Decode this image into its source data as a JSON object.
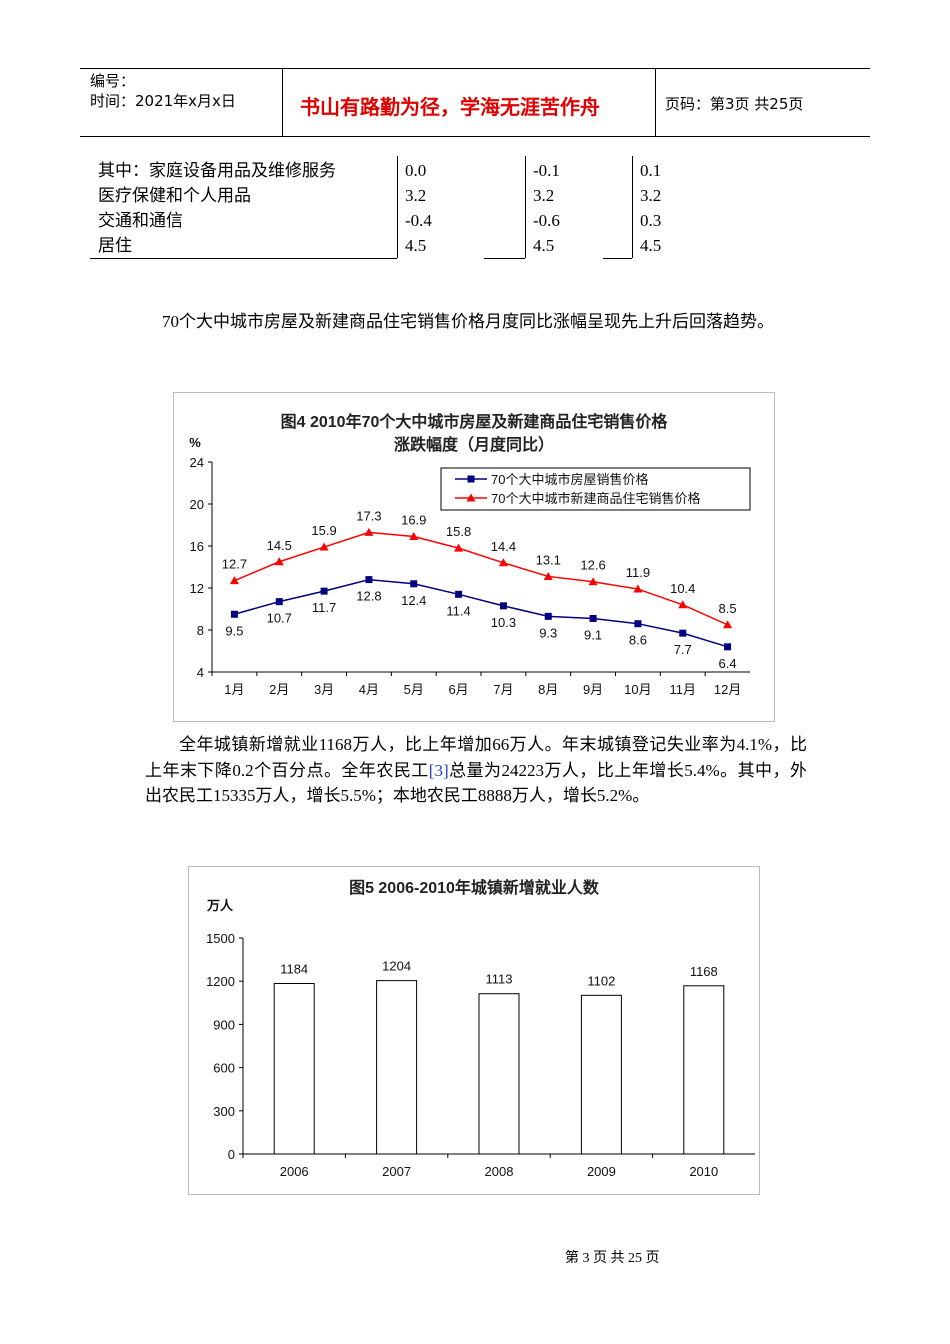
{
  "header": {
    "number": "编号：",
    "time": "时间：2021年x月x日",
    "motto": "书山有路勤为径，学海无涯苦作舟",
    "page": "页码：第3页  共25页"
  },
  "table": {
    "rows": [
      [
        "其中：家庭设备用品及维修服务",
        "0.0",
        "-0.1",
        "0.1"
      ],
      [
        "医疗保健和个人用品",
        "3.2",
        "3.2",
        "3.2"
      ],
      [
        "交通和通信",
        "-0.4",
        "-0.6",
        "0.3"
      ],
      [
        "居住",
        "4.5",
        "4.5",
        "4.5"
      ]
    ]
  },
  "paragraphs": [
    "70个大中城市房屋及新建商品住宅销售价格月度同比涨幅呈现先上升后回落趋势。",
    {
      "before": "全年城镇新增就业1168万人，比上年增加66万人。年末城镇登记失业率为4.1%，比上年末下降0.2个百分点。全年农民工",
      "note": "[3]",
      "after": "总量为24223万人，比上年增长5.4%。其中，外出农民工15335万人，增长5.5%；本地农民工8888万人，增长5.2%。"
    }
  ],
  "chart_data": [
    {
      "type": "line",
      "title": "图4   2010年70个大中城市房屋及新建商品住宅销售价格",
      "subtitle": "涨跌幅度（月度同比）",
      "y_label": "%",
      "categories": [
        "1月",
        "2月",
        "3月",
        "4月",
        "5月",
        "6月",
        "7月",
        "8月",
        "9月",
        "10月",
        "11月",
        "12月"
      ],
      "series": [
        {
          "name": "70个大中城市房屋销售价格",
          "color": "#000080",
          "marker": "square",
          "values": [
            9.5,
            10.7,
            11.7,
            12.8,
            12.4,
            11.4,
            10.3,
            9.3,
            9.1,
            8.6,
            7.7,
            6.4
          ]
        },
        {
          "name": "70个大中城市新建商品住宅销售价格",
          "color": "#ff0000",
          "marker": "triangle",
          "values": [
            12.7,
            14.5,
            15.9,
            17.3,
            16.9,
            15.8,
            14.4,
            13.1,
            12.6,
            11.9,
            10.4,
            8.5
          ]
        }
      ],
      "ylim": [
        4,
        24
      ],
      "yticks": [
        4,
        8,
        12,
        16,
        20,
        24
      ],
      "legend": "top-right"
    },
    {
      "type": "bar",
      "title": "图5   2006-2010年城镇新增就业人数",
      "y_label": "万人",
      "categories": [
        "2006",
        "2007",
        "2008",
        "2009",
        "2010"
      ],
      "values": [
        1184,
        1204,
        1113,
        1102,
        1168
      ],
      "color": "#ffffff",
      "ylim": [
        0,
        1500
      ],
      "yticks": [
        0,
        300,
        600,
        900,
        1200,
        1500
      ]
    }
  ],
  "footer": "第 3 页 共 25 页"
}
